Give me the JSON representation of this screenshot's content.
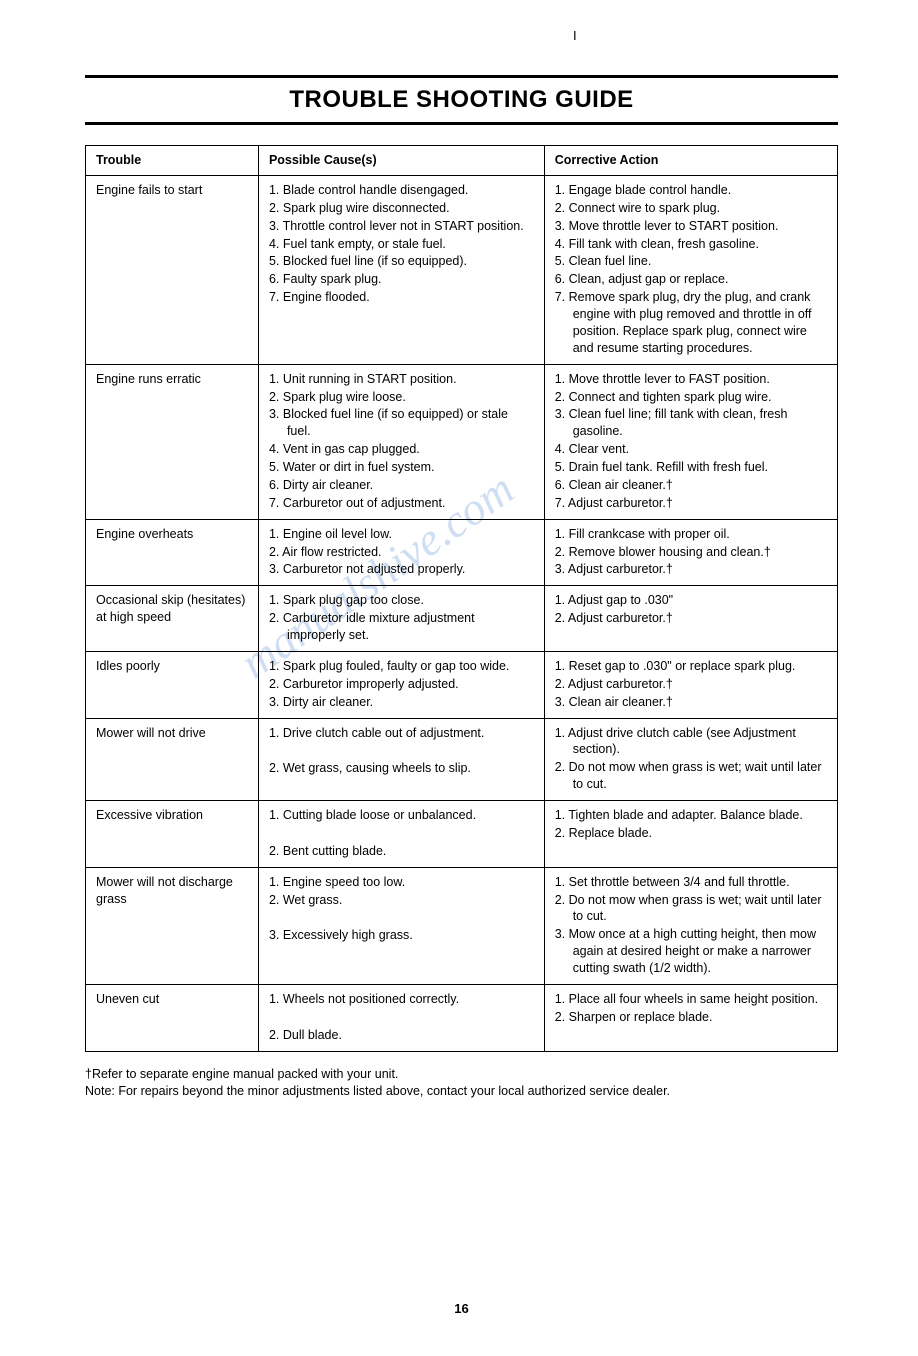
{
  "page": {
    "title": "TROUBLE SHOOTING GUIDE",
    "top_mark": "I",
    "page_number": "16",
    "footnotes": [
      "†Refer to separate engine manual packed with your unit.",
      "Note: For repairs beyond the minor adjustments listed above, contact your local authorized service dealer."
    ]
  },
  "table": {
    "headers": {
      "trouble": "Trouble",
      "cause": "Possible Cause(s)",
      "action": "Corrective Action"
    },
    "rows": [
      {
        "trouble": "Engine fails to start",
        "causes": [
          "1.  Blade control handle disengaged.",
          "2.  Spark plug wire disconnected.",
          "3.  Throttle control lever not in START position.",
          "4.  Fuel tank empty, or stale fuel.",
          "5.  Blocked fuel line (if so equipped).",
          "6.  Faulty spark plug.",
          "7.  Engine flooded."
        ],
        "actions": [
          "1.  Engage blade control handle.",
          "2.  Connect wire to spark plug.",
          "3.  Move throttle lever to START position.",
          "4.  Fill tank with clean, fresh gasoline.",
          "5.  Clean fuel line.",
          "6.  Clean, adjust gap or replace.",
          "7.  Remove spark plug, dry the plug, and crank engine with plug removed and throttle in off position. Replace spark plug, connect wire and resume starting procedures."
        ]
      },
      {
        "trouble": "Engine runs erratic",
        "causes": [
          "1.  Unit running in START position.",
          "2.  Spark plug wire loose.",
          "3.  Blocked fuel line (if so equipped) or stale fuel.",
          "4.  Vent in gas cap plugged.",
          "5.  Water or dirt in fuel system.",
          "6.  Dirty air cleaner.",
          "7.  Carburetor out of adjustment."
        ],
        "actions": [
          "1.  Move throttle lever to FAST position.",
          "2.  Connect and tighten spark plug wire.",
          "3.  Clean fuel line; fill tank with clean, fresh gasoline.",
          "4.  Clear vent.",
          "5.  Drain fuel tank. Refill with fresh fuel.",
          "6.  Clean air cleaner.†",
          "7.  Adjust carburetor.†"
        ]
      },
      {
        "trouble": "Engine overheats",
        "causes": [
          "1.  Engine oil level low.",
          "2.  Air flow restricted.",
          "3.  Carburetor not adjusted properly."
        ],
        "actions": [
          "1.  Fill crankcase with proper oil.",
          "2.  Remove blower housing and clean.†",
          "3.  Adjust carburetor.†"
        ]
      },
      {
        "trouble": "Occasional skip (hesitates) at high speed",
        "causes": [
          "1.  Spark plug gap too close.",
          "2.  Carburetor idle mixture adjustment improperly set."
        ],
        "actions": [
          "1.  Adjust gap to .030\"",
          "2.  Adjust carburetor.†"
        ]
      },
      {
        "trouble": "Idles poorly",
        "causes": [
          "1.  Spark plug fouled, faulty or gap too wide.",
          "2.  Carburetor improperly adjusted.",
          "3.  Dirty air cleaner."
        ],
        "actions": [
          "1.  Reset gap to .030\" or replace spark plug.",
          "2.  Adjust carburetor.†",
          "3.  Clean air cleaner.†"
        ]
      },
      {
        "trouble": "Mower will not drive",
        "causes": [
          "1.  Drive clutch cable out of adjustment.",
          "",
          "2.  Wet grass, causing wheels to slip."
        ],
        "actions": [
          "1.  Adjust drive clutch cable (see Adjustment section).",
          "2.  Do not mow when grass is wet; wait until later to cut."
        ]
      },
      {
        "trouble": "Excessive vibration",
        "causes": [
          "1.  Cutting blade loose or unbalanced.",
          "",
          "2.  Bent cutting blade."
        ],
        "actions": [
          "1.  Tighten blade and adapter. Balance blade.",
          "2.  Replace blade."
        ]
      },
      {
        "trouble": "Mower will not discharge grass",
        "causes": [
          "1.  Engine speed too low.",
          "2.  Wet grass.",
          "",
          "3.  Excessively high grass."
        ],
        "actions": [
          "1.  Set throttle between 3/4 and full throttle.",
          "2.  Do not mow when grass is wet; wait until later to cut.",
          "3.  Mow once at a high cutting height, then mow again at desired height or make a narrower cutting swath (1/2 width)."
        ]
      },
      {
        "trouble": "Uneven cut",
        "causes": [
          "1.  Wheels not positioned correctly.",
          "",
          "2.  Dull blade."
        ],
        "actions": [
          "1.  Place all four wheels in same height position.",
          "2.  Sharpen or replace blade."
        ]
      }
    ]
  },
  "watermark": {
    "color": "#a8c4e8",
    "opacity": 0.5
  }
}
